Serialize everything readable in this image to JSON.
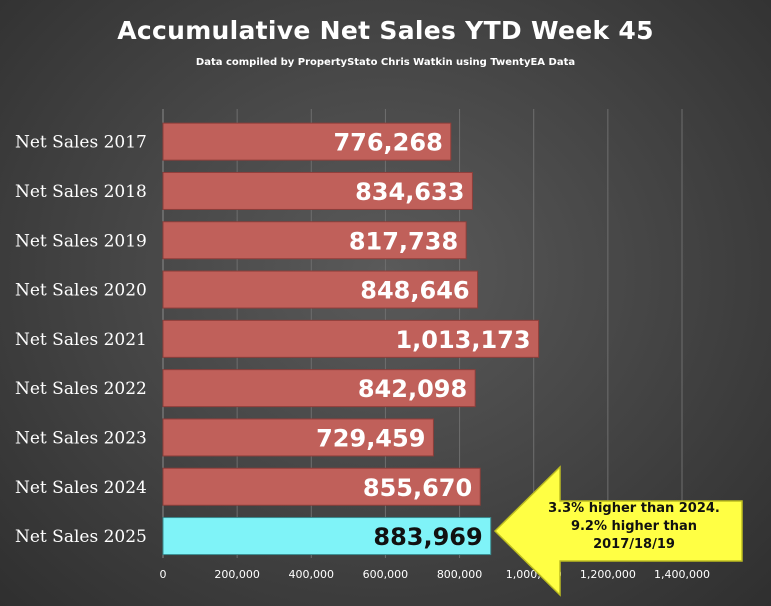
{
  "chart_data": {
    "type": "bar",
    "orientation": "horizontal",
    "title": "Accumulative Net Sales YTD Week 45",
    "subtitle": "Data compiled by PropertyStato Chris Watkin using TwentyEA Data",
    "categories": [
      "Net Sales 2017",
      "Net Sales 2018",
      "Net Sales 2019",
      "Net Sales 2020",
      "Net Sales 2021",
      "Net Sales 2022",
      "Net Sales 2023",
      "Net Sales 2024",
      "Net Sales 2025"
    ],
    "values": [
      776268,
      834633,
      817738,
      848646,
      1013173,
      842098,
      729459,
      855670,
      883969
    ],
    "value_labels": [
      "776,268",
      "834,633",
      "817,738",
      "848,646",
      "1,013,173",
      "842,098",
      "729,459",
      "855,670",
      "883,969"
    ],
    "xlim": [
      0,
      1400000
    ],
    "x_ticks": [
      0,
      200000,
      400000,
      600000,
      800000,
      1000000,
      1200000,
      1400000
    ],
    "x_tick_labels": [
      "0",
      "200,000",
      "400,000",
      "600,000",
      "800,000",
      "1,000,000",
      "1,200,000",
      "1,400,000"
    ],
    "grid": "vertical",
    "legend": "none",
    "colors": {
      "bar": "#c0605a",
      "bar_highlight": "#7ff3f8",
      "callout": "#ffff44"
    },
    "annotation": {
      "lines": [
        "3.3% higher than 2024.",
        "9.2% higher than",
        "2017/18/19"
      ],
      "target": "Net Sales 2025"
    }
  }
}
